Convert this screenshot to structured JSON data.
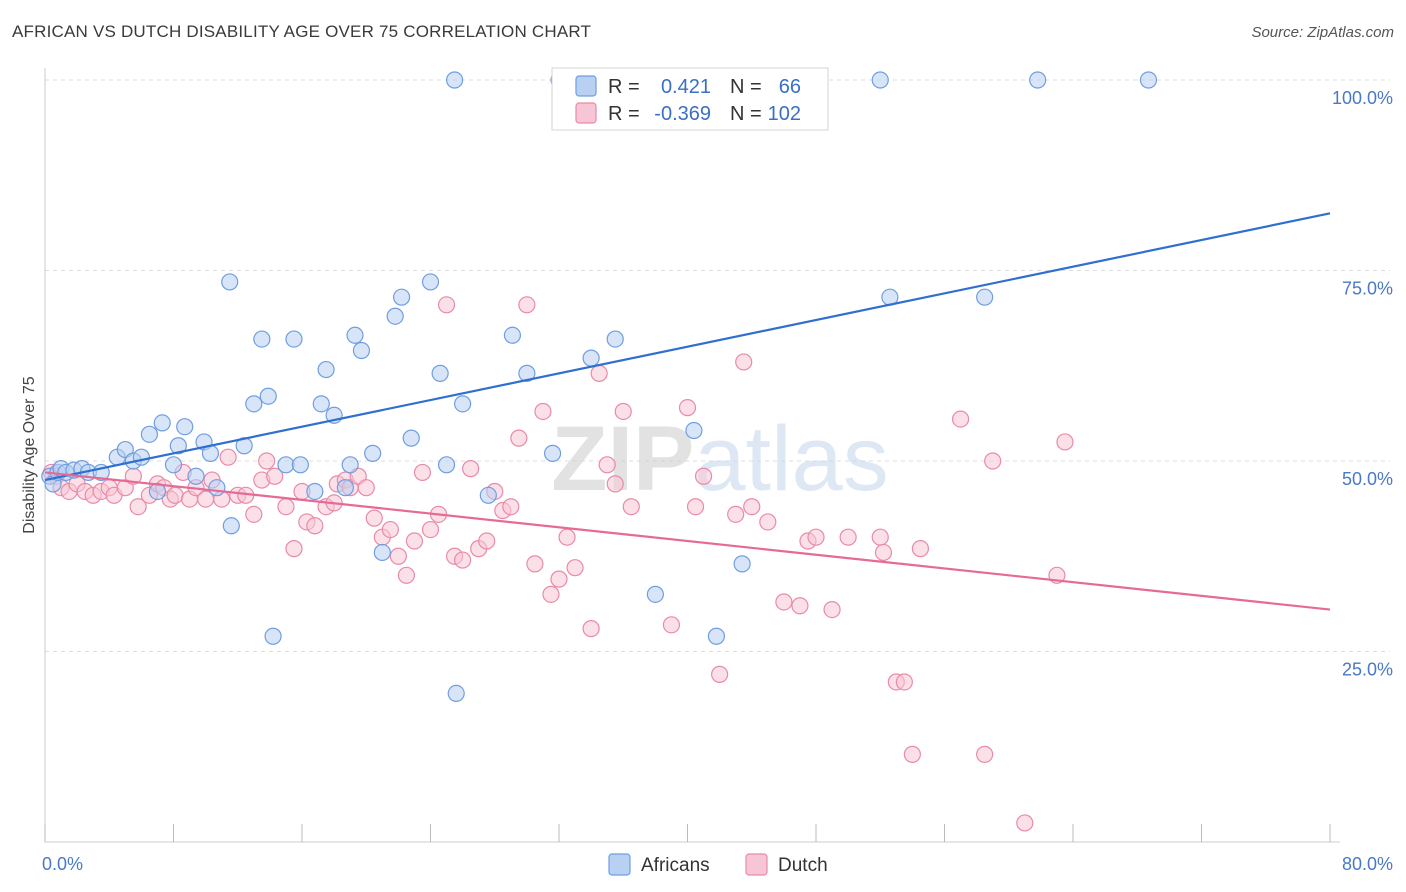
{
  "title": "AFRICAN VS DUTCH DISABILITY AGE OVER 75 CORRELATION CHART",
  "source": "Source: ZipAtlas.com",
  "watermark": "ZIPatlas",
  "colors": {
    "africans_fill": "#b8d0f2",
    "africans_stroke": "#6f9ee0",
    "africans_line": "#2f6fd0",
    "dutch_fill": "#f7c6d6",
    "dutch_stroke": "#e98aa9",
    "dutch_line": "#e56a94",
    "tick_text": "#4a78c8",
    "grid": "#dddddd"
  },
  "legend": {
    "rows": [
      {
        "r_label": "R =",
        "r_value": "0.421",
        "n_label": "N =",
        "n_value": "66"
      },
      {
        "r_label": "R =",
        "r_value": "-0.369",
        "n_label": "N =",
        "n_value": "102"
      }
    ]
  },
  "chart_data": {
    "type": "scatter",
    "xlabel": "",
    "ylabel": "Disability Age Over 75",
    "xlim": [
      0,
      80
    ],
    "ylim": [
      0,
      100
    ],
    "x_tick_labels": [
      "0.0%",
      "80.0%"
    ],
    "y_tick_labels": [
      "100.0%",
      "75.0%",
      "50.0%",
      "25.0%"
    ],
    "y_ticks": [
      100,
      75,
      50,
      25
    ],
    "grid": true,
    "legend_position": "bottom-center",
    "series": [
      {
        "name": "Africans",
        "r": 0.421,
        "n": 66,
        "trend": {
          "x0": 0,
          "y0": 47.5,
          "x1": 80,
          "y1": 82.5
        },
        "points": [
          [
            0.3,
            48
          ],
          [
            0.5,
            47
          ],
          [
            0.8,
            48.5
          ],
          [
            1,
            49
          ],
          [
            1.3,
            48.5
          ],
          [
            1.8,
            48.8
          ],
          [
            2.3,
            49
          ],
          [
            2.7,
            48.5
          ],
          [
            3.5,
            48.5
          ],
          [
            4.5,
            50.5
          ],
          [
            5,
            51.5
          ],
          [
            5.5,
            50
          ],
          [
            6,
            50.5
          ],
          [
            6.5,
            53.5
          ],
          [
            7,
            46
          ],
          [
            7.3,
            55
          ],
          [
            8,
            49.5
          ],
          [
            8.3,
            52
          ],
          [
            8.7,
            54.5
          ],
          [
            9.4,
            48
          ],
          [
            9.9,
            52.5
          ],
          [
            10.3,
            51
          ],
          [
            10.7,
            46.5
          ],
          [
            11.5,
            73.5
          ],
          [
            11.6,
            41.5
          ],
          [
            12.4,
            52
          ],
          [
            13,
            57.5
          ],
          [
            13.5,
            66
          ],
          [
            13.9,
            58.5
          ],
          [
            14.2,
            27
          ],
          [
            15,
            49.5
          ],
          [
            15.5,
            66
          ],
          [
            15.9,
            49.5
          ],
          [
            16.8,
            46
          ],
          [
            17.5,
            62
          ],
          [
            17.2,
            57.5
          ],
          [
            18,
            56
          ],
          [
            18.7,
            46.5
          ],
          [
            19.3,
            66.5
          ],
          [
            19.7,
            64.5
          ],
          [
            19,
            49.5
          ],
          [
            20.4,
            51
          ],
          [
            21,
            38
          ],
          [
            21.8,
            69
          ],
          [
            22.2,
            71.5
          ],
          [
            22.8,
            53
          ],
          [
            24,
            73.5
          ],
          [
            24.6,
            61.5
          ],
          [
            25,
            49.5
          ],
          [
            25.5,
            100
          ],
          [
            25.6,
            19.5
          ],
          [
            26,
            57.5
          ],
          [
            27.6,
            45.5
          ],
          [
            29.1,
            66.5
          ],
          [
            30,
            61.5
          ],
          [
            31.6,
            51
          ],
          [
            34,
            63.5
          ],
          [
            35.5,
            66
          ],
          [
            38,
            32.5
          ],
          [
            40.4,
            54
          ],
          [
            41.8,
            27
          ],
          [
            43.4,
            36.5
          ],
          [
            52,
            100
          ],
          [
            52.6,
            71.5
          ],
          [
            58.5,
            71.5
          ],
          [
            61.8,
            100
          ],
          [
            68.7,
            100
          ],
          [
            32,
            100
          ]
        ]
      },
      {
        "name": "Dutch",
        "r": -0.369,
        "n": 102,
        "trend": {
          "x0": 0,
          "y0": 48.5,
          "x1": 80,
          "y1": 30.5
        },
        "points": [
          [
            0.4,
            48.5
          ],
          [
            0.7,
            48
          ],
          [
            1,
            46.5
          ],
          [
            1.5,
            46
          ],
          [
            2,
            47
          ],
          [
            2.5,
            46
          ],
          [
            3,
            45.5
          ],
          [
            3.5,
            46
          ],
          [
            4,
            46.5
          ],
          [
            4.3,
            45.5
          ],
          [
            5,
            46.5
          ],
          [
            5.5,
            48
          ],
          [
            5.8,
            44
          ],
          [
            6.5,
            45.5
          ],
          [
            7,
            47
          ],
          [
            7.4,
            46.5
          ],
          [
            7.8,
            45
          ],
          [
            8.1,
            45.5
          ],
          [
            8.6,
            48.5
          ],
          [
            9,
            45
          ],
          [
            9.4,
            46.5
          ],
          [
            10,
            45
          ],
          [
            10.4,
            47.5
          ],
          [
            11,
            45
          ],
          [
            11.4,
            50.5
          ],
          [
            12,
            45.5
          ],
          [
            12.5,
            45.5
          ],
          [
            13,
            43
          ],
          [
            13.5,
            47.5
          ],
          [
            13.8,
            50
          ],
          [
            14.3,
            48
          ],
          [
            15,
            44
          ],
          [
            15.5,
            38.5
          ],
          [
            16,
            46
          ],
          [
            16.3,
            42
          ],
          [
            16.8,
            41.5
          ],
          [
            17.5,
            44
          ],
          [
            18,
            44.5
          ],
          [
            18.2,
            47
          ],
          [
            18.7,
            47.5
          ],
          [
            19,
            46.5
          ],
          [
            19.5,
            48
          ],
          [
            20,
            46.5
          ],
          [
            20.5,
            42.5
          ],
          [
            21,
            40
          ],
          [
            21.5,
            41
          ],
          [
            22,
            37.5
          ],
          [
            22.5,
            35
          ],
          [
            23,
            39.5
          ],
          [
            23.5,
            48.5
          ],
          [
            24,
            41
          ],
          [
            24.5,
            43
          ],
          [
            25,
            70.5
          ],
          [
            25.5,
            37.5
          ],
          [
            26,
            37
          ],
          [
            26.5,
            49
          ],
          [
            27,
            38.5
          ],
          [
            27.5,
            39.5
          ],
          [
            28,
            46
          ],
          [
            28.5,
            43.5
          ],
          [
            29,
            44
          ],
          [
            29.5,
            53
          ],
          [
            30,
            70.5
          ],
          [
            30.5,
            36.5
          ],
          [
            31,
            56.5
          ],
          [
            31.5,
            32.5
          ],
          [
            32,
            34.5
          ],
          [
            32.5,
            40
          ],
          [
            33,
            36
          ],
          [
            34,
            28
          ],
          [
            34.5,
            61.5
          ],
          [
            35,
            49.5
          ],
          [
            35.5,
            47
          ],
          [
            36,
            56.5
          ],
          [
            36.5,
            44
          ],
          [
            39,
            28.5
          ],
          [
            40,
            57
          ],
          [
            40.5,
            44
          ],
          [
            41,
            48
          ],
          [
            42,
            22
          ],
          [
            43,
            43
          ],
          [
            43.5,
            63
          ],
          [
            44,
            44
          ],
          [
            45,
            42
          ],
          [
            46,
            31.5
          ],
          [
            47,
            31
          ],
          [
            47.5,
            39.5
          ],
          [
            48,
            40
          ],
          [
            49,
            30.5
          ],
          [
            50,
            40
          ],
          [
            52,
            40
          ],
          [
            52.2,
            38
          ],
          [
            53,
            21
          ],
          [
            53.5,
            21
          ],
          [
            54,
            11.5
          ],
          [
            54.5,
            38.5
          ],
          [
            57,
            55.5
          ],
          [
            58.5,
            11.5
          ],
          [
            59,
            50
          ],
          [
            61,
            2.5
          ],
          [
            63,
            35
          ],
          [
            63.5,
            52.5
          ]
        ]
      }
    ]
  }
}
